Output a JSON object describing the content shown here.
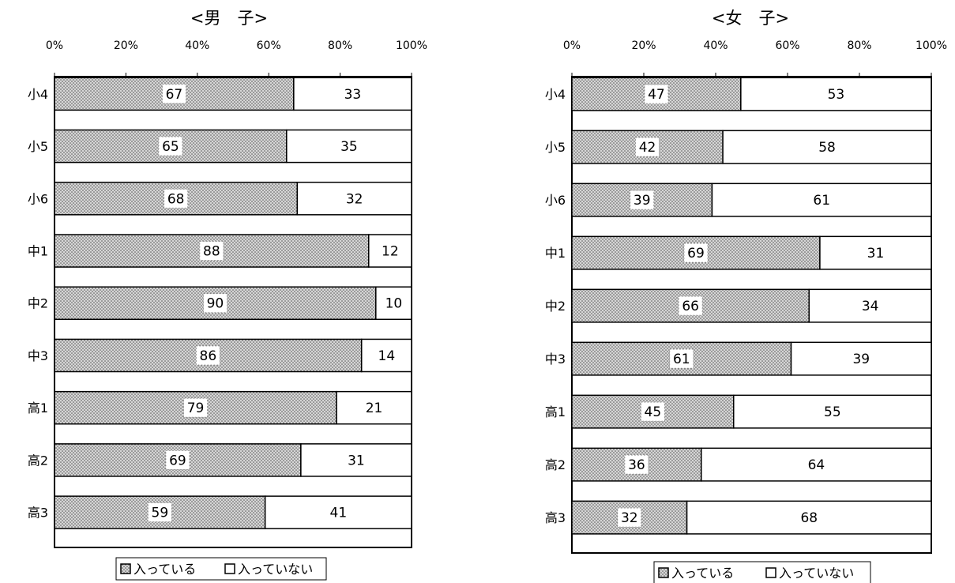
{
  "chart_data": [
    {
      "type": "bar",
      "stacked": true,
      "orientation": "horizontal",
      "percent": true,
      "title": "<男　子>",
      "categories": [
        "小4",
        "小5",
        "小6",
        "中1",
        "中2",
        "中3",
        "高1",
        "高2",
        "高3"
      ],
      "xlim": [
        0,
        100
      ],
      "x_ticks": [
        "0%",
        "20%",
        "40%",
        "60%",
        "80%",
        "100%"
      ],
      "series": [
        {
          "name": "入っている",
          "values": [
            67,
            65,
            68,
            88,
            90,
            86,
            79,
            69,
            59
          ],
          "pattern": "dotted-gray"
        },
        {
          "name": "入っていない",
          "values": [
            33,
            35,
            32,
            12,
            10,
            14,
            21,
            31,
            41
          ],
          "pattern": "white"
        }
      ],
      "legend_position": "bottom"
    },
    {
      "type": "bar",
      "stacked": true,
      "orientation": "horizontal",
      "percent": true,
      "title": "<女　子>",
      "categories": [
        "小4",
        "小5",
        "小6",
        "中1",
        "中2",
        "中3",
        "高1",
        "高2",
        "高3"
      ],
      "xlim": [
        0,
        100
      ],
      "x_ticks": [
        "0%",
        "20%",
        "40%",
        "60%",
        "80%",
        "100%"
      ],
      "series": [
        {
          "name": "入っている",
          "values": [
            47,
            42,
            39,
            69,
            66,
            61,
            45,
            36,
            32
          ],
          "pattern": "dotted-gray"
        },
        {
          "name": "入っていない",
          "values": [
            53,
            58,
            61,
            31,
            34,
            39,
            55,
            64,
            68
          ],
          "pattern": "white"
        }
      ],
      "legend_position": "bottom"
    }
  ]
}
